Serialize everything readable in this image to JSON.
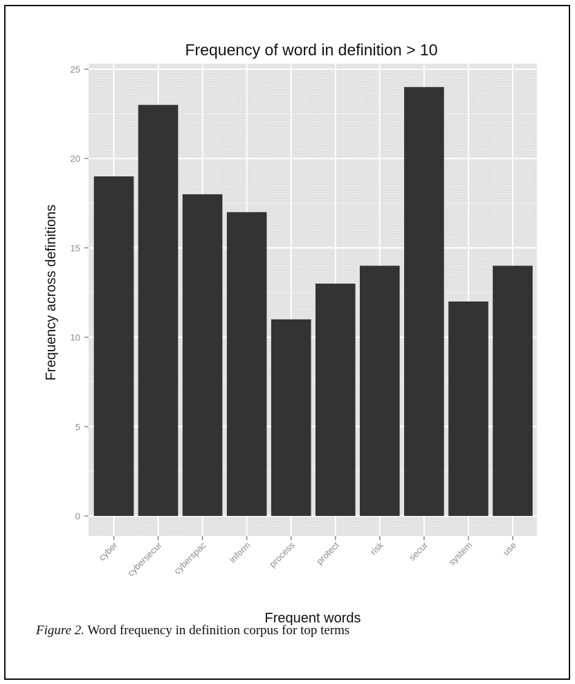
{
  "chart_data": {
    "type": "bar",
    "title": "Frequency of word in definition > 10",
    "xlabel": "Frequent words",
    "ylabel": "Frequency across definitions",
    "categories": [
      "cyber",
      "cybersecur",
      "cyberspac",
      "inform",
      "process",
      "protect",
      "risk",
      "secur",
      "system",
      "use"
    ],
    "values": [
      19,
      23,
      18,
      17,
      11,
      13,
      14,
      24,
      12,
      14
    ],
    "ylim": [
      0,
      25
    ],
    "yticks": [
      0,
      5,
      10,
      15,
      20,
      25
    ],
    "grid": true,
    "legend": "none",
    "colors": {
      "bar": "#333333",
      "panel": "#e5e5e5",
      "grid": "#ffffff"
    }
  },
  "caption": {
    "label": "Figure 2.",
    "text": " Word frequency in definition corpus for top terms"
  }
}
